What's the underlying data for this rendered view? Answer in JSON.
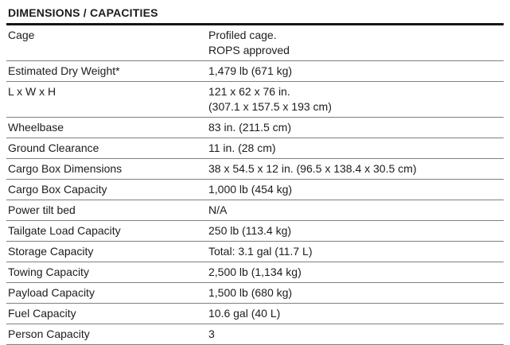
{
  "table": {
    "title": "DIMENSIONS / CAPACITIES",
    "rows": [
      {
        "label": "Cage",
        "value": "Profiled cage.\nROPS approved"
      },
      {
        "label": "Estimated Dry Weight*",
        "value": "1,479 lb (671 kg)"
      },
      {
        "label": "L x W x H",
        "value": "121 x 62 x 76 in.\n(307.1 x 157.5 x 193 cm)"
      },
      {
        "label": "Wheelbase",
        "value": "83 in. (211.5 cm)"
      },
      {
        "label": "Ground Clearance",
        "value": "11 in. (28 cm)"
      },
      {
        "label": "Cargo Box Dimensions",
        "value": "38 x 54.5 x 12 in. (96.5 x 138.4 x 30.5 cm)"
      },
      {
        "label": "Cargo Box Capacity",
        "value": "1,000 lb (454 kg)"
      },
      {
        "label": "Power tilt bed",
        "value": "N/A"
      },
      {
        "label": "Tailgate Load Capacity",
        "value": "250 lb (113.4 kg)"
      },
      {
        "label": "Storage Capacity",
        "value": "Total: 3.1 gal (11.7 L)"
      },
      {
        "label": "Towing Capacity",
        "value": "2,500 lb (1,134 kg)"
      },
      {
        "label": "Payload Capacity",
        "value": "1,500 lb (680 kg)"
      },
      {
        "label": "Fuel Capacity",
        "value": "10.6 gal (40 L)"
      },
      {
        "label": "Person Capacity",
        "value": "3"
      }
    ],
    "colors": {
      "text": "#1c1c1c",
      "header_rule": "#161616",
      "row_divider": "#7f7f7f",
      "background": "#ffffff"
    }
  }
}
